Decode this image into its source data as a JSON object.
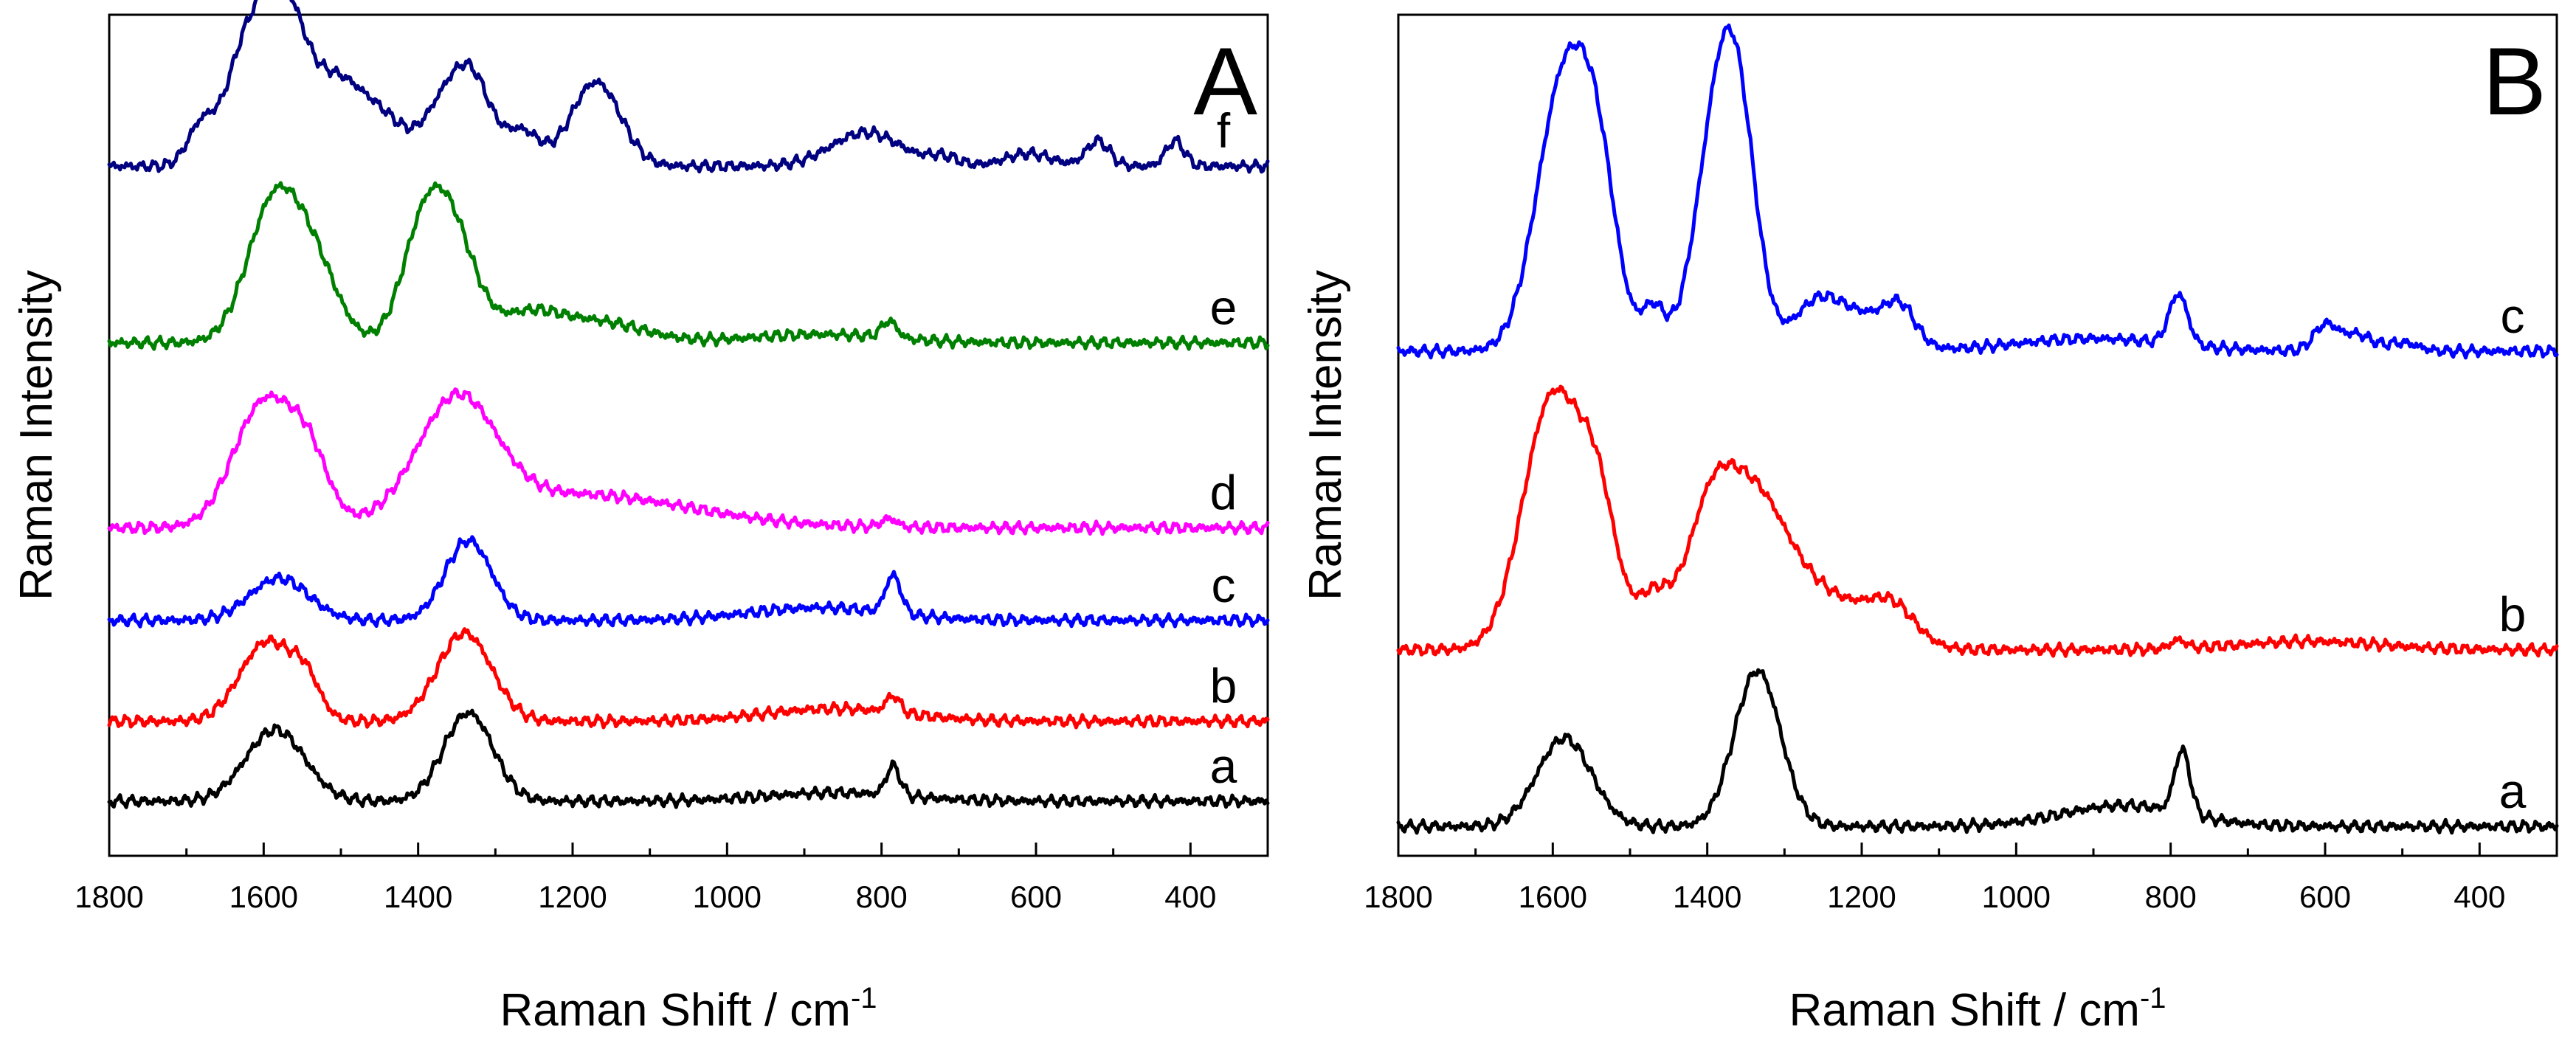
{
  "chart_data": [
    {
      "type": "line",
      "panel_label": "A",
      "xlabel": "Raman Shift / cm",
      "xlabel_superscript": "-1",
      "ylabel": "Raman Intensity",
      "xlim": [
        1800,
        300
      ],
      "xticks": [
        "1800",
        "1600",
        "1400",
        "1200",
        "1000",
        "800",
        "600",
        "400"
      ],
      "ylim": [
        0,
        10
      ],
      "y_ticks_shown": false,
      "series": [
        {
          "name": "a",
          "color": "#000000",
          "baseline": 0.65,
          "peaks": [
            [
              1585,
              0.85,
              38
            ],
            [
              1335,
              1.05,
              32
            ],
            [
              785,
              0.35,
              9
            ],
            [
              860,
              0.1,
              90
            ]
          ],
          "wiggles": []
        },
        {
          "name": "b",
          "color": "#ff0000",
          "baseline": 1.6,
          "peaks": [
            [
              1595,
              0.95,
              35
            ],
            [
              1545,
              0.35,
              18
            ],
            [
              1340,
              1.05,
              35
            ],
            [
              785,
              0.2,
              9
            ],
            [
              860,
              0.15,
              90
            ]
          ],
          "wiggles": []
        },
        {
          "name": "c",
          "color": "#0000ff",
          "baseline": 2.8,
          "peaks": [
            [
              1580,
              0.5,
              38
            ],
            [
              1335,
              0.95,
              30
            ],
            [
              785,
              0.45,
              10
            ],
            [
              880,
              0.15,
              90
            ]
          ],
          "wiggles": []
        },
        {
          "name": "d",
          "color": "#ff00ff",
          "baseline": 3.9,
          "peaks": [
            [
              1598,
              1.5,
              40
            ],
            [
              1540,
              0.6,
              25
            ],
            [
              1350,
              1.35,
              50
            ],
            [
              1200,
              0.4,
              150
            ],
            [
              790,
              0.1,
              10
            ]
          ],
          "wiggles": [
            [
              1680,
              0.15
            ],
            [
              1470,
              0.1
            ]
          ]
        },
        {
          "name": "e",
          "color": "#008000",
          "baseline": 6.1,
          "peaks": [
            [
              1585,
              1.7,
              35
            ],
            [
              1530,
              0.7,
              30
            ],
            [
              1395,
              1.15,
              28
            ],
            [
              1355,
              1.2,
              30
            ],
            [
              1260,
              0.3,
              40
            ],
            [
              1170,
              0.25,
              60
            ],
            [
              790,
              0.2,
              10
            ],
            [
              880,
              0.1,
              90
            ]
          ],
          "wiggles": [
            [
              1470,
              0.1
            ],
            [
              600,
              0.08
            ]
          ]
        },
        {
          "name": "f",
          "color": "#000080",
          "baseline": 8.2,
          "peaks": [
            [
              1680,
              0.5,
              18
            ],
            [
              1630,
              1.1,
              22
            ],
            [
              1595,
              1.3,
              22
            ],
            [
              1565,
              1.1,
              22
            ],
            [
              1510,
              1.05,
              40
            ],
            [
              1440,
              0.4,
              30
            ],
            [
              1370,
              0.6,
              25
            ],
            [
              1330,
              1.0,
              25
            ],
            [
              1265,
              0.4,
              22
            ],
            [
              1170,
              1.0,
              32
            ],
            [
              820,
              0.4,
              45
            ],
            [
              720,
              0.1,
              20
            ],
            [
              610,
              0.15,
              30
            ],
            [
              520,
              0.3,
              15
            ],
            [
              420,
              0.3,
              12
            ]
          ],
          "wiggles": []
        }
      ]
    },
    {
      "type": "line",
      "panel_label": "B",
      "xlabel": "Raman Shift / cm",
      "xlabel_superscript": "-1",
      "ylabel": "Raman Intensity",
      "xlim": [
        1800,
        300
      ],
      "xticks": [
        "1800",
        "1600",
        "1400",
        "1200",
        "1000",
        "800",
        "600",
        "400"
      ],
      "ylim": [
        0,
        10
      ],
      "y_ticks_shown": false,
      "series": [
        {
          "name": "a",
          "color": "#000000",
          "baseline": 0.35,
          "peaks": [
            [
              1585,
              1.05,
              35
            ],
            [
              1335,
              1.85,
              30
            ],
            [
              785,
              0.75,
              10
            ],
            [
              860,
              0.25,
              80
            ]
          ],
          "wiggles": []
        },
        {
          "name": "b",
          "color": "#ff0000",
          "baseline": 2.45,
          "peaks": [
            [
              1600,
              3.0,
              38
            ],
            [
              1540,
              1.4,
              25
            ],
            [
              1470,
              0.6,
              22
            ],
            [
              1400,
              1.1,
              30
            ],
            [
              1345,
              1.7,
              45
            ],
            [
              1250,
              0.6,
              60
            ],
            [
              1160,
              0.4,
              30
            ],
            [
              790,
              0.1,
              10
            ],
            [
              620,
              0.1,
              90
            ]
          ],
          "wiggles": []
        },
        {
          "name": "c",
          "color": "#0000ff",
          "baseline": 6.0,
          "peaks": [
            [
              1585,
              3.2,
              35
            ],
            [
              1540,
              1.5,
              25
            ],
            [
              1470,
              0.5,
              15
            ],
            [
              1390,
              2.2,
              28
            ],
            [
              1360,
              2.3,
              25
            ],
            [
              1260,
              0.5,
              30
            ],
            [
              1200,
              0.4,
              40
            ],
            [
              1150,
              0.4,
              20
            ],
            [
              900,
              0.15,
              100
            ],
            [
              790,
              0.6,
              12
            ],
            [
              600,
              0.3,
              15
            ],
            [
              560,
              0.2,
              20
            ],
            [
              500,
              0.1,
              20
            ]
          ],
          "wiggles": []
        }
      ]
    }
  ]
}
